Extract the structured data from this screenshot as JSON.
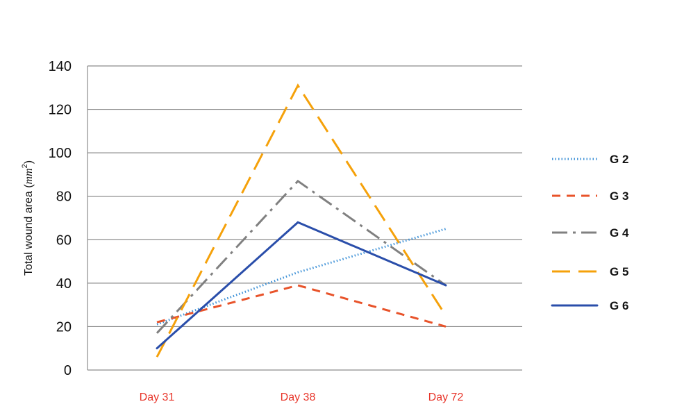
{
  "chart_data": {
    "type": "line",
    "title": "",
    "xlabel": "",
    "ylabel_prefix": "Total wound area (",
    "ylabel_unit": "mm",
    "ylabel_exp": "2",
    "ylabel_suffix": ")",
    "categories": [
      "Day 31",
      "Day 38",
      "Day 72"
    ],
    "ylim": [
      0,
      140
    ],
    "yticks": [
      0,
      20,
      40,
      60,
      80,
      100,
      120,
      140
    ],
    "grid": true,
    "legend_position": "right",
    "tick_label_color": "#e8352a",
    "series": [
      {
        "name": "G 2",
        "values": [
          21,
          45,
          65
        ],
        "color": "#3a8fd6",
        "dash": "dotted"
      },
      {
        "name": "G 3",
        "values": [
          22,
          39,
          20
        ],
        "color": "#e8532a",
        "dash": "dashed"
      },
      {
        "name": "G 4",
        "values": [
          17,
          87,
          39
        ],
        "color": "#808080",
        "dash": "dash-dot"
      },
      {
        "name": "G 5",
        "values": [
          6,
          131,
          25
        ],
        "color": "#f5a10a",
        "dash": "long-dash"
      },
      {
        "name": "G 6",
        "values": [
          10,
          68,
          39
        ],
        "color": "#2a4eaa",
        "dash": "solid"
      }
    ]
  }
}
